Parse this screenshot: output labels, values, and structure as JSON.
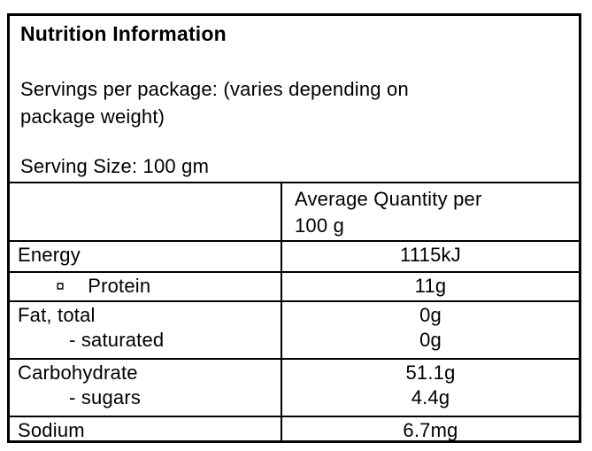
{
  "label": {
    "title": "Nutrition Information",
    "servings_line1": "Servings per package: (varies depending on",
    "servings_line2": "package weight)",
    "serving_size": "Serving Size: 100 gm"
  },
  "table": {
    "header": {
      "quantity_column": "Average Quantity per 100 g"
    },
    "rows": [
      {
        "lines": [
          {
            "label": "Energy",
            "value": "1115kJ"
          }
        ]
      },
      {
        "lines": [
          {
            "bullet": "¤",
            "label": "Protein",
            "value": "11g"
          }
        ]
      },
      {
        "lines": [
          {
            "label": "Fat, total",
            "value": "0g"
          },
          {
            "label": "- saturated",
            "value": "0g"
          }
        ]
      },
      {
        "lines": [
          {
            "label": "Carbohydrate",
            "value": "51.1g"
          },
          {
            "label": "- sugars",
            "value": "4.4g"
          }
        ]
      },
      {
        "lines": [
          {
            "label": "Sodium",
            "value": "6.7mg"
          }
        ]
      }
    ]
  },
  "colors": {
    "border": "#000000",
    "text": "#000000",
    "background": "#ffffff"
  }
}
